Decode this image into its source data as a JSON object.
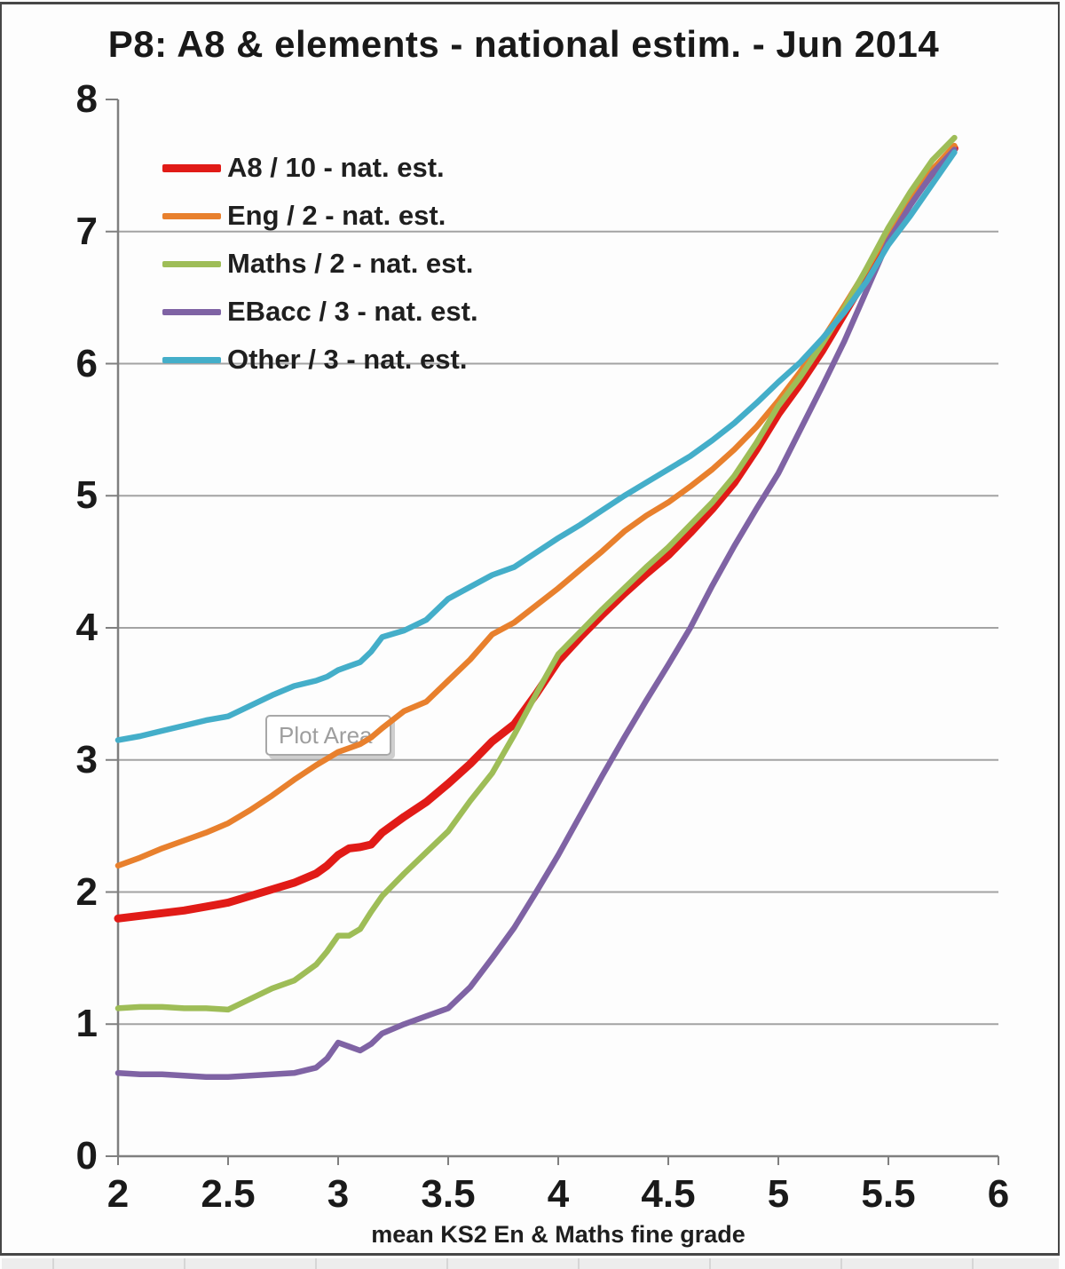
{
  "ui": {
    "plot_area_tooltip": "Plot Area"
  },
  "colors": {
    "grid": "#a3a3a3",
    "axis": "#7f7f7f",
    "text": "#1a1a1a",
    "frame": "#474747"
  },
  "chart_data": {
    "type": "line",
    "title": "P8: A8 & elements - national estim. - Jun 2014",
    "xlabel": "mean KS2 En & Maths fine grade",
    "ylabel": "",
    "xlim": [
      2,
      6
    ],
    "ylim": [
      0,
      8
    ],
    "x_ticks": [
      2,
      2.5,
      3,
      3.5,
      4,
      4.5,
      5,
      5.5,
      6
    ],
    "y_ticks": [
      0,
      1,
      2,
      3,
      4,
      5,
      6,
      7,
      8
    ],
    "grid": "horizontal-only",
    "legend_position": "inside-top-left",
    "x": [
      2.0,
      2.1,
      2.2,
      2.3,
      2.4,
      2.5,
      2.6,
      2.7,
      2.8,
      2.9,
      2.95,
      3.0,
      3.05,
      3.1,
      3.15,
      3.2,
      3.3,
      3.4,
      3.5,
      3.6,
      3.7,
      3.8,
      3.9,
      4.0,
      4.1,
      4.2,
      4.3,
      4.4,
      4.5,
      4.6,
      4.7,
      4.8,
      4.9,
      5.0,
      5.1,
      5.2,
      5.3,
      5.4,
      5.5,
      5.6,
      5.7,
      5.8
    ],
    "series": [
      {
        "name": "A8 / 10 - nat. est.",
        "color": "#e11b17",
        "line_width": 9,
        "values": [
          1.8,
          1.82,
          1.84,
          1.86,
          1.89,
          1.92,
          1.97,
          2.02,
          2.07,
          2.14,
          2.2,
          2.28,
          2.33,
          2.34,
          2.36,
          2.45,
          2.57,
          2.68,
          2.82,
          2.97,
          3.14,
          3.27,
          3.5,
          3.75,
          3.93,
          4.1,
          4.26,
          4.41,
          4.55,
          4.72,
          4.9,
          5.1,
          5.35,
          5.62,
          5.85,
          6.1,
          6.38,
          6.66,
          6.96,
          7.22,
          7.45,
          7.63
        ]
      },
      {
        "name": "Eng / 2 - nat. est.",
        "color": "#e8802d",
        "line_width": 6.5,
        "values": [
          2.2,
          2.26,
          2.33,
          2.39,
          2.45,
          2.52,
          2.62,
          2.73,
          2.85,
          2.96,
          3.01,
          3.06,
          3.09,
          3.12,
          3.17,
          3.24,
          3.37,
          3.44,
          3.6,
          3.76,
          3.95,
          4.04,
          4.17,
          4.3,
          4.44,
          4.58,
          4.73,
          4.85,
          4.95,
          5.07,
          5.2,
          5.35,
          5.52,
          5.72,
          5.94,
          6.18,
          6.44,
          6.71,
          7.0,
          7.25,
          7.47,
          7.65
        ]
      },
      {
        "name": "Maths / 2 - nat. est.",
        "color": "#9ebd57",
        "line_width": 6.5,
        "values": [
          1.12,
          1.13,
          1.13,
          1.12,
          1.12,
          1.11,
          1.19,
          1.27,
          1.33,
          1.45,
          1.55,
          1.67,
          1.67,
          1.72,
          1.85,
          1.97,
          2.14,
          2.3,
          2.46,
          2.69,
          2.9,
          3.19,
          3.5,
          3.8,
          3.97,
          4.14,
          4.3,
          4.46,
          4.61,
          4.78,
          4.95,
          5.15,
          5.4,
          5.68,
          5.9,
          6.15,
          6.42,
          6.72,
          7.03,
          7.3,
          7.54,
          7.71
        ]
      },
      {
        "name": "EBacc / 3 - nat. est.",
        "color": "#7f63a4",
        "line_width": 6.5,
        "values": [
          0.63,
          0.62,
          0.62,
          0.61,
          0.6,
          0.6,
          0.61,
          0.62,
          0.63,
          0.67,
          0.74,
          0.86,
          0.83,
          0.8,
          0.85,
          0.93,
          1.0,
          1.06,
          1.12,
          1.28,
          1.5,
          1.73,
          2.0,
          2.28,
          2.58,
          2.88,
          3.17,
          3.45,
          3.72,
          4.0,
          4.32,
          4.62,
          4.9,
          5.17,
          5.5,
          5.83,
          6.17,
          6.55,
          6.93,
          7.2,
          7.44,
          7.62
        ]
      },
      {
        "name": "Other / 3 - nat. est.",
        "color": "#44aec9",
        "line_width": 6.5,
        "values": [
          3.15,
          3.18,
          3.22,
          3.26,
          3.3,
          3.33,
          3.41,
          3.49,
          3.56,
          3.6,
          3.63,
          3.68,
          3.71,
          3.74,
          3.82,
          3.93,
          3.98,
          4.06,
          4.22,
          4.31,
          4.4,
          4.46,
          4.57,
          4.68,
          4.78,
          4.89,
          5.0,
          5.1,
          5.2,
          5.3,
          5.42,
          5.55,
          5.7,
          5.86,
          6.01,
          6.19,
          6.39,
          6.62,
          6.9,
          7.12,
          7.36,
          7.6
        ]
      }
    ]
  }
}
